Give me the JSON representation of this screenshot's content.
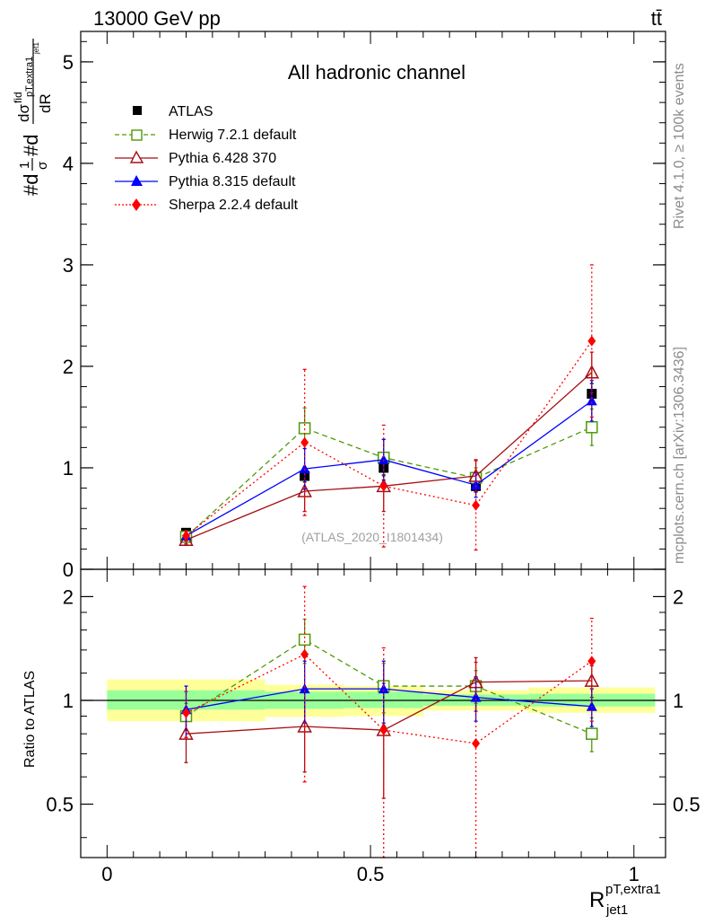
{
  "header": {
    "energy_label": "13000 GeV pp",
    "process_label": "tt̄",
    "rivet_label": "Rivet 4.1.0, ≥ 100k events",
    "mcplots_label": "mcplots.cern.ch [arXiv:1306.3436]"
  },
  "chart_data": [
    {
      "type": "line",
      "panel": "main",
      "title": "All hadronic channel",
      "watermark": "(ATLAS_2020_I1801434)",
      "ylabel_parts": {
        "lead": "#d",
        "frac1_num": "1",
        "frac1_den": "σ",
        "mid": "#d",
        "dsig": "dσ",
        "fid": "fid",
        "sub": "pT,extra1",
        "sub2": "jet1",
        "dR": "dR"
      },
      "xlim": [
        -0.05,
        1.06
      ],
      "ylim": [
        0,
        5.3
      ],
      "y_ticks": [
        0,
        1,
        2,
        3,
        4,
        5
      ],
      "y_tick_labels": [
        "0",
        "1",
        "2",
        "3",
        "4",
        "5"
      ],
      "x_bins": [
        [
          0.0,
          0.3
        ],
        [
          0.3,
          0.45
        ],
        [
          0.45,
          0.6
        ],
        [
          0.6,
          0.8
        ],
        [
          0.8,
          1.04
        ]
      ],
      "legend": {
        "position": "top-left"
      },
      "series": [
        {
          "name": "ATLAS",
          "color": "#000000",
          "marker": "square-filled",
          "line": "none",
          "x": [
            0.15,
            0.375,
            0.525,
            0.7,
            0.92
          ],
          "y": [
            0.36,
            0.92,
            1.0,
            0.82,
            1.73
          ],
          "err": [
            0.03,
            0.06,
            0.07,
            0.05,
            0.1
          ]
        },
        {
          "name": "Herwig 7.2.1 default",
          "color": "#4e9a06",
          "marker": "square-open",
          "line": "dashed",
          "x": [
            0.15,
            0.375,
            0.525,
            0.7,
            0.92
          ],
          "y": [
            0.32,
            1.39,
            1.1,
            0.9,
            1.4
          ],
          "err": [
            0.03,
            0.2,
            0.18,
            0.1,
            0.18
          ]
        },
        {
          "name": "Pythia 6.428 370",
          "color": "#a50f15",
          "marker": "triangle-open",
          "line": "solid",
          "x": [
            0.15,
            0.375,
            0.525,
            0.7,
            0.92
          ],
          "y": [
            0.29,
            0.77,
            0.82,
            0.92,
            1.94
          ],
          "err": [
            0.04,
            0.2,
            0.25,
            0.16,
            0.2
          ]
        },
        {
          "name": "Pythia 8.315 default",
          "color": "#0000ff",
          "marker": "triangle-filled",
          "line": "solid",
          "x": [
            0.15,
            0.375,
            0.525,
            0.7,
            0.92
          ],
          "y": [
            0.33,
            0.99,
            1.08,
            0.83,
            1.66
          ],
          "err": [
            0.05,
            0.2,
            0.2,
            0.12,
            0.2
          ]
        },
        {
          "name": "Sherpa 2.2.4 default",
          "color": "#ff0000",
          "marker": "diamond-filled",
          "line": "dotted",
          "x": [
            0.15,
            0.375,
            0.525,
            0.7,
            0.92
          ],
          "y": [
            0.33,
            1.25,
            0.82,
            0.63,
            2.25
          ],
          "err": [
            0.05,
            0.72,
            0.6,
            0.44,
            0.75
          ]
        }
      ]
    },
    {
      "type": "line",
      "panel": "ratio",
      "ylabel": "Ratio to ATLAS",
      "xlabel_main": "R",
      "xlabel_sup": "pT,extra1",
      "xlabel_sub": "jet1",
      "xlim": [
        -0.05,
        1.06
      ],
      "ylim": [
        0.35,
        2.4
      ],
      "y_ticks": [
        0.5,
        1,
        2
      ],
      "y_tick_labels": [
        "0.5",
        "1",
        "2"
      ],
      "x_ticks": [
        0,
        0.5,
        1
      ],
      "x_tick_labels": [
        "0",
        "0.5",
        "1"
      ],
      "bands": {
        "x_bins": [
          [
            0.0,
            0.3
          ],
          [
            0.3,
            0.45
          ],
          [
            0.45,
            0.6
          ],
          [
            0.6,
            0.8
          ],
          [
            0.8,
            1.04
          ]
        ],
        "yellow": [
          [
            0.87,
            1.15
          ],
          [
            0.895,
            1.11
          ],
          [
            0.9,
            1.1
          ],
          [
            0.935,
            1.07
          ],
          [
            0.92,
            1.09
          ]
        ],
        "green": [
          [
            0.94,
            1.07
          ],
          [
            0.945,
            1.06
          ],
          [
            0.95,
            1.06
          ],
          [
            0.965,
            1.04
          ],
          [
            0.96,
            1.045
          ]
        ]
      },
      "series": [
        {
          "name": "Herwig 7.2.1 default",
          "color": "#4e9a06",
          "marker": "square-open",
          "line": "dashed",
          "x": [
            0.15,
            0.375,
            0.525,
            0.7,
            0.92
          ],
          "y": [
            0.9,
            1.5,
            1.1,
            1.1,
            0.8
          ],
          "err": [
            0.08,
            0.22,
            0.18,
            0.12,
            0.09
          ]
        },
        {
          "name": "Pythia 6.428 370",
          "color": "#a50f15",
          "marker": "triangle-open",
          "line": "solid",
          "x": [
            0.15,
            0.375,
            0.525,
            0.7,
            0.92
          ],
          "y": [
            0.8,
            0.84,
            0.82,
            1.13,
            1.14
          ],
          "err": [
            0.14,
            0.22,
            0.3,
            0.2,
            0.12
          ]
        },
        {
          "name": "Pythia 8.315 default",
          "color": "#0000ff",
          "marker": "triangle-filled",
          "line": "solid",
          "x": [
            0.15,
            0.375,
            0.525,
            0.7,
            0.92
          ],
          "y": [
            0.94,
            1.08,
            1.08,
            1.02,
            0.96
          ],
          "err": [
            0.16,
            0.22,
            0.22,
            0.15,
            0.12
          ]
        },
        {
          "name": "Sherpa 2.2.4 default",
          "color": "#ff0000",
          "marker": "diamond-filled",
          "line": "dotted",
          "x": [
            0.15,
            0.375,
            0.525,
            0.7,
            0.92
          ],
          "y": [
            0.92,
            1.36,
            0.82,
            0.75,
            1.3
          ],
          "err": [
            0.14,
            0.78,
            0.6,
            0.54,
            0.43
          ]
        }
      ]
    }
  ]
}
